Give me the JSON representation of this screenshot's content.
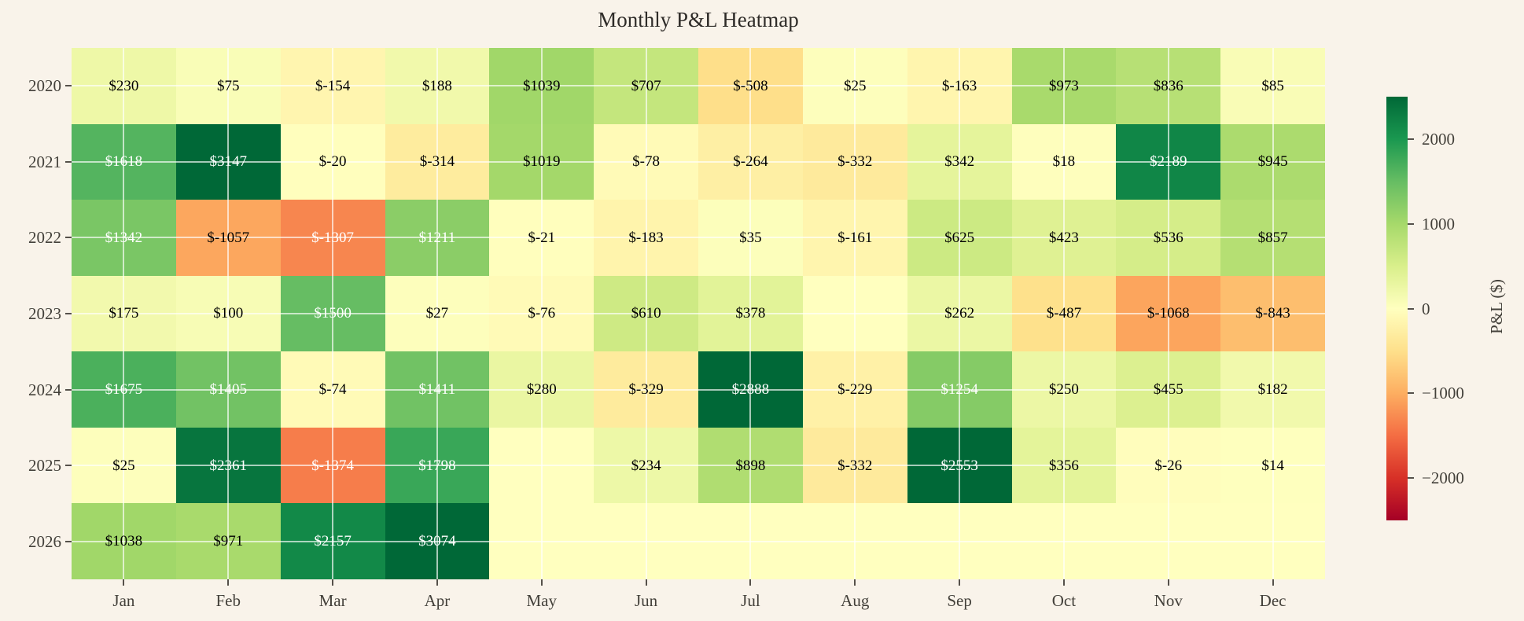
{
  "chart_data": {
    "type": "heatmap",
    "title": "Monthly P&L Heatmap",
    "x_categories": [
      "Jan",
      "Feb",
      "Mar",
      "Apr",
      "May",
      "Jun",
      "Jul",
      "Aug",
      "Sep",
      "Oct",
      "Nov",
      "Dec"
    ],
    "y_categories": [
      "2020",
      "2021",
      "2022",
      "2023",
      "2024",
      "2025",
      "2026"
    ],
    "values": [
      [
        230,
        75,
        -154,
        188,
        1039,
        707,
        -508,
        25,
        -163,
        973,
        836,
        85
      ],
      [
        1618,
        3147,
        -20,
        -314,
        1019,
        -78,
        -264,
        -332,
        342,
        18,
        2189,
        945
      ],
      [
        1342,
        -1057,
        -1307,
        1211,
        -21,
        -183,
        35,
        -161,
        625,
        423,
        536,
        857
      ],
      [
        175,
        100,
        1500,
        27,
        -76,
        610,
        378,
        null,
        262,
        -487,
        -1068,
        -843
      ],
      [
        1675,
        1405,
        -74,
        1411,
        280,
        -329,
        2888,
        -229,
        1254,
        250,
        455,
        182
      ],
      [
        25,
        2361,
        -1374,
        1798,
        null,
        234,
        898,
        -332,
        2553,
        356,
        -26,
        14
      ],
      [
        1038,
        971,
        2157,
        3074,
        null,
        null,
        null,
        null,
        null,
        null,
        null,
        null
      ]
    ],
    "value_prefix": "$",
    "colormap": "RdYlGn",
    "vmin": -2500,
    "vmax": 2500,
    "grid": true,
    "legend_position": "right",
    "colorbar": {
      "label": "P&L ($)",
      "ticks": [
        2000,
        1000,
        0,
        -1000,
        -2000
      ]
    }
  },
  "style": {
    "background": "#f9f3ea",
    "title_color": "#2e2b28",
    "tick_label_color": "#43403a",
    "annotation_dark": "#000000",
    "annotation_light": "#ffffff",
    "gridline_color": "rgba(255,255,255,0.65)",
    "colormap_stops": [
      "#a50026",
      "#d73027",
      "#f46d43",
      "#fdae61",
      "#fee08b",
      "#ffffbf",
      "#d9ef8b",
      "#a6d96a",
      "#66bd63",
      "#1a9850",
      "#006837"
    ]
  }
}
